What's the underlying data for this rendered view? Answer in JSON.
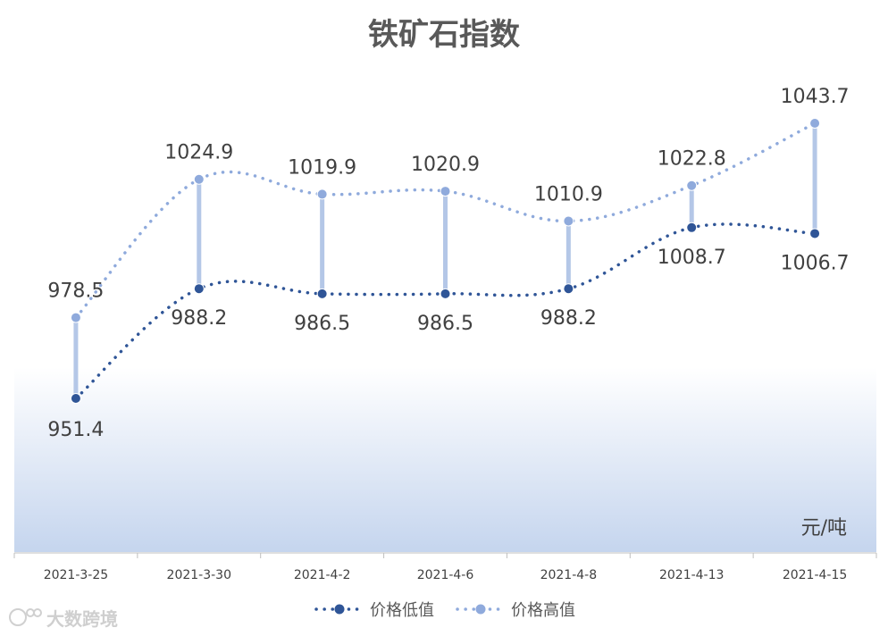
{
  "chart_data": {
    "type": "line",
    "title": "铁矿石指数",
    "unit_label": "元/吨",
    "categories": [
      "2021-3-25",
      "2021-3-30",
      "2021-4-2",
      "2021-4-6",
      "2021-4-8",
      "2021-4-13",
      "2021-4-15"
    ],
    "series": [
      {
        "name": "价格低值",
        "values": [
          951.4,
          988.2,
          986.5,
          986.5,
          988.2,
          1008.7,
          1006.7
        ],
        "labels": [
          "951.4",
          "988.2",
          "986.5",
          "986.5",
          "988.2",
          "1008.7",
          "1006.7"
        ],
        "color": "#2f5597"
      },
      {
        "name": "价格高值",
        "values": [
          978.5,
          1024.9,
          1019.9,
          1020.9,
          1010.9,
          1022.8,
          1043.7
        ],
        "labels": [
          "978.5",
          "1024.9",
          "1019.9",
          "1020.9",
          "1010.9",
          "1022.8",
          "1043.7"
        ],
        "color": "#8faadc"
      }
    ],
    "high_low_lines": true,
    "smooth": true,
    "grid": false,
    "legend": "bottom",
    "background": "gradient white-to-light-blue"
  },
  "watermark": "大数跨境"
}
